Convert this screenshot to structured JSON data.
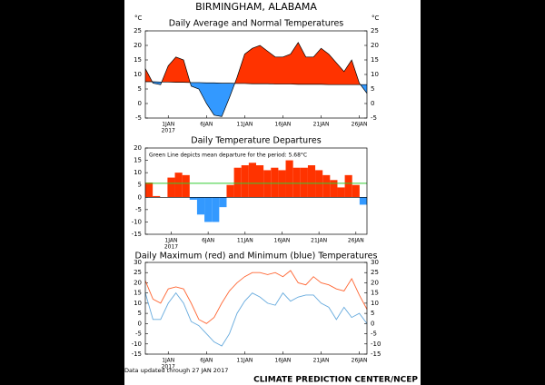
{
  "page": {
    "title": "BIRMINGHAM, ALABAMA",
    "updated": "Data updated through 27 JAN 2017",
    "credit": "CLIMATE PREDICTION CENTER/NCEP"
  },
  "chart_data": [
    {
      "type": "area",
      "title": "Daily Average and Normal Temperatures",
      "y_unit": "°C",
      "x": [
        -2,
        -1,
        0,
        1,
        2,
        3,
        4,
        5,
        6,
        7,
        8,
        9,
        10,
        11,
        12,
        13,
        14,
        15,
        16,
        17,
        18,
        19,
        20,
        21,
        22,
        23,
        24,
        25,
        26,
        27
      ],
      "xlim": [
        -2,
        27
      ],
      "xticks": [
        {
          "value": 1,
          "label": "1JAN"
        },
        {
          "value": 6,
          "label": "6JAN"
        },
        {
          "value": 11,
          "label": "11JAN"
        },
        {
          "value": 16,
          "label": "16JAN"
        },
        {
          "value": 21,
          "label": "21JAN"
        },
        {
          "value": 26,
          "label": "26JAN"
        }
      ],
      "x_sublabel": "2017",
      "ylim": [
        -5,
        25
      ],
      "yticks": [
        -5,
        0,
        5,
        10,
        15,
        20,
        25
      ],
      "right_ticks": true,
      "above_color": "#ff3300",
      "below_color": "#3399ff",
      "series": [
        {
          "color": "#000000",
          "values": [
            12,
            7,
            6.5,
            13,
            16,
            15,
            6,
            5,
            0,
            -4,
            -4.5,
            2,
            9,
            17,
            19,
            20,
            18,
            16,
            16,
            17,
            21,
            16,
            16,
            19,
            17,
            14,
            11,
            15,
            7,
            3.5
          ]
        },
        {
          "color": "#000000",
          "values": [
            7.5,
            7.5,
            7.4,
            7.4,
            7.3,
            7.3,
            7.2,
            7.2,
            7.1,
            7.1,
            7,
            7,
            6.9,
            6.9,
            6.8,
            6.8,
            6.8,
            6.7,
            6.7,
            6.7,
            6.6,
            6.6,
            6.6,
            6.6,
            6.5,
            6.5,
            6.5,
            6.5,
            6.5,
            6.5
          ]
        }
      ]
    },
    {
      "type": "bar",
      "title": "Daily Temperature Departures",
      "annotation": "Green Line depicts mean departure for the period: 5.68°C",
      "x": [
        -2,
        -1,
        0,
        1,
        2,
        3,
        4,
        5,
        6,
        7,
        8,
        9,
        10,
        11,
        12,
        13,
        14,
        15,
        16,
        17,
        18,
        19,
        20,
        21,
        22,
        23,
        24,
        25,
        26,
        27
      ],
      "xlim": [
        -2.5,
        27.5
      ],
      "xticks": [
        {
          "value": 1,
          "label": "1JAN"
        },
        {
          "value": 6,
          "label": "6JAN"
        },
        {
          "value": 11,
          "label": "11JAN"
        },
        {
          "value": 16,
          "label": "16JAN"
        },
        {
          "value": 21,
          "label": "21JAN"
        },
        {
          "value": 26,
          "label": "26JAN"
        }
      ],
      "x_sublabel": "2017",
      "ylim": [
        -15,
        20
      ],
      "yticks": [
        -15,
        -10,
        -5,
        0,
        5,
        10,
        15,
        20
      ],
      "right_ticks": false,
      "above_color": "#ff3300",
      "below_color": "#3399ff",
      "values": [
        6,
        0.5,
        0,
        8,
        10,
        9,
        -1,
        -7,
        -10,
        -10,
        -4,
        5,
        12,
        13,
        14,
        13,
        11,
        12,
        11,
        15,
        12,
        12,
        13,
        11,
        9,
        7,
        4,
        9,
        5,
        -3
      ],
      "mean": 5.68,
      "mean_color": "#33cc33"
    },
    {
      "type": "line",
      "title": "Daily Maximum (red) and Minimum (blue) Temperatures",
      "x": [
        -2,
        -1,
        0,
        1,
        2,
        3,
        4,
        5,
        6,
        7,
        8,
        9,
        10,
        11,
        12,
        13,
        14,
        15,
        16,
        17,
        18,
        19,
        20,
        21,
        22,
        23,
        24,
        25,
        26,
        27
      ],
      "xlim": [
        -2,
        27
      ],
      "xticks": [
        {
          "value": 1,
          "label": "1JAN"
        },
        {
          "value": 6,
          "label": "6JAN"
        },
        {
          "value": 11,
          "label": "11JAN"
        },
        {
          "value": 16,
          "label": "16JAN"
        },
        {
          "value": 21,
          "label": "21JAN"
        },
        {
          "value": 26,
          "label": "26JAN"
        }
      ],
      "x_sublabel": "2017",
      "ylim": [
        -15,
        30
      ],
      "yticks": [
        -15,
        -10,
        -5,
        0,
        5,
        10,
        15,
        20,
        25,
        30
      ],
      "right_ticks": true,
      "series": [
        {
          "color": "#ff6633",
          "values": [
            21,
            12,
            10,
            17,
            18,
            17,
            10,
            2,
            0,
            3,
            10,
            16,
            20,
            23,
            25,
            25,
            24,
            25,
            23,
            26,
            20,
            19,
            23,
            20,
            19,
            17,
            16,
            22,
            14,
            7
          ]
        },
        {
          "color": "#66aadd",
          "values": [
            15,
            2,
            2,
            10,
            15,
            10,
            1,
            -1,
            -5,
            -9,
            -11,
            -5,
            5,
            11,
            15,
            13,
            10,
            9,
            15,
            11,
            13,
            14,
            14,
            10,
            8,
            2,
            8,
            3,
            5,
            0
          ]
        }
      ]
    }
  ]
}
